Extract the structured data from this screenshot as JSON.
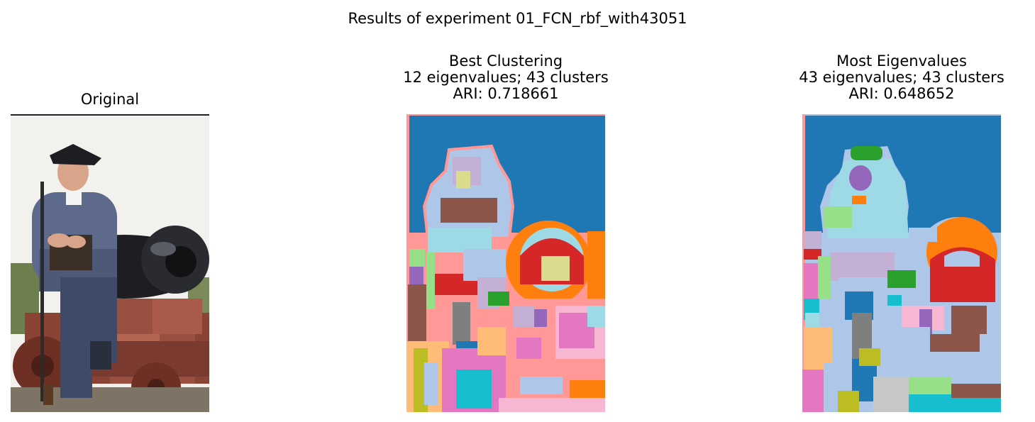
{
  "figure": {
    "suptitle": "Results of experiment 01_FCN_rbf_with43051"
  },
  "panels": [
    {
      "title_lines": [
        "Original"
      ],
      "image": "photo of man in colonial uniform sitting on cannon"
    },
    {
      "title_lines": [
        "Best Clustering",
        "12 eigenvalues; 43 clusters",
        "ARI: 0.718661"
      ],
      "image": "segmentation map"
    },
    {
      "title_lines": [
        "Most Eigenvalues",
        "43 eigenvalues; 43 clusters",
        "ARI: 0.648652"
      ],
      "image": "segmentation map"
    }
  ],
  "colors": {
    "tab_blue": "#1f77b4",
    "tab_orange": "#ff7f0e",
    "tab_red": "#d62728",
    "tab_green": "#2ca02c",
    "tab_purple": "#9467bd",
    "tab_brown": "#8c564b",
    "tab_pink": "#e377c2",
    "tab_gray": "#7f7f7f",
    "tab_olive": "#bcbd22",
    "tab_cyan": "#17becf",
    "light_blue": "#aec7e8",
    "light_cyan": "#9edae5",
    "salmon": "#ff9896",
    "light_pink": "#f7b6d2",
    "light_orange": "#ffbb78",
    "light_green": "#98df8a",
    "light_purple": "#c5b0d5",
    "khaki": "#dbdb8d"
  }
}
